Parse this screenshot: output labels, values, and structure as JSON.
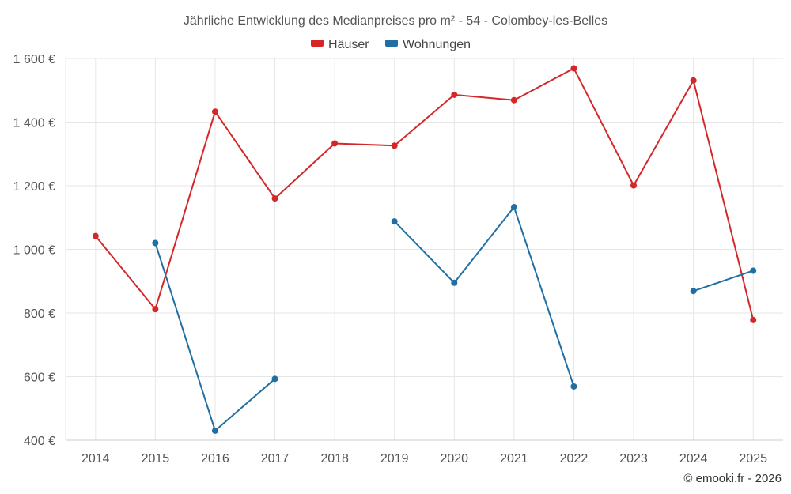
{
  "chart_data": {
    "type": "line",
    "title": "Jährliche Entwicklung des Medianpreises pro m² - 54 - Colombey-les-Belles",
    "x": [
      "2014",
      "2015",
      "2016",
      "2017",
      "2018",
      "2019",
      "2020",
      "2021",
      "2022",
      "2023",
      "2024",
      "2025"
    ],
    "y_ticks": [
      "400 €",
      "600 €",
      "800 €",
      "1 000 €",
      "1 200 €",
      "1 400 €",
      "1 600 €"
    ],
    "y_tick_values": [
      400,
      600,
      800,
      1000,
      1200,
      1400,
      1600
    ],
    "ylim": [
      400,
      1600
    ],
    "grid": true,
    "legend_position": "top-center",
    "series": [
      {
        "name": "Häuser",
        "color": "#d62728",
        "values": [
          1042,
          812,
          1433,
          1160,
          1333,
          1326,
          1486,
          1469,
          1569,
          1201,
          1531,
          778
        ]
      },
      {
        "name": "Wohnungen",
        "color": "#1f6fa3",
        "values": [
          null,
          1020,
          430,
          593,
          null,
          1088,
          895,
          1133,
          569,
          null,
          869,
          933
        ]
      }
    ],
    "xlabel": "",
    "ylabel": ""
  },
  "credit": "© emooki.fr - 2026"
}
